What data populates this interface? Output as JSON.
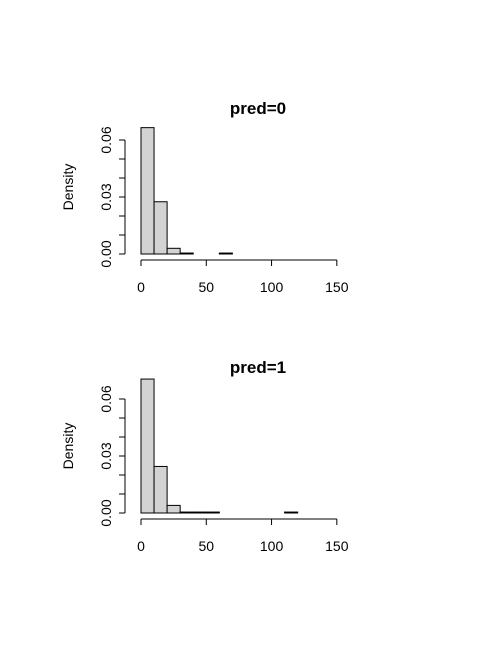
{
  "chart_data": [
    {
      "type": "bar",
      "title": "pred=0",
      "xlabel": "",
      "ylabel": "Density",
      "xlim": [
        0,
        180
      ],
      "ylim": [
        0,
        0.07
      ],
      "xticks": [
        "0",
        "50",
        "100",
        "150"
      ],
      "yticks": [
        "0.00",
        "0.03",
        "0.06"
      ],
      "bin_width": 10,
      "bins": [
        {
          "x0": 0,
          "x1": 10,
          "density": 0.0665
        },
        {
          "x0": 10,
          "x1": 20,
          "density": 0.0275
        },
        {
          "x0": 20,
          "x1": 30,
          "density": 0.003
        },
        {
          "x0": 30,
          "x1": 40,
          "density": 0.0005
        },
        {
          "x0": 40,
          "x1": 50,
          "density": 0.0
        },
        {
          "x0": 50,
          "x1": 60,
          "density": 0.0
        },
        {
          "x0": 60,
          "x1": 70,
          "density": 0.0005
        },
        {
          "x0": 70,
          "x1": 80,
          "density": 0.0
        },
        {
          "x0": 80,
          "x1": 90,
          "density": 0.0
        },
        {
          "x0": 90,
          "x1": 100,
          "density": 0.0
        },
        {
          "x0": 100,
          "x1": 110,
          "density": 0.0
        },
        {
          "x0": 110,
          "x1": 120,
          "density": 0.0
        },
        {
          "x0": 120,
          "x1": 130,
          "density": 0.0
        },
        {
          "x0": 130,
          "x1": 140,
          "density": 0.0
        },
        {
          "x0": 140,
          "x1": 150,
          "density": 0.0
        },
        {
          "x0": 150,
          "x1": 160,
          "density": 0.0
        },
        {
          "x0": 160,
          "x1": 170,
          "density": 0.0
        },
        {
          "x0": 170,
          "x1": 180,
          "density": 0.0
        }
      ]
    },
    {
      "type": "bar",
      "title": "pred=1",
      "xlabel": "",
      "ylabel": "Density",
      "xlim": [
        0,
        180
      ],
      "ylim": [
        0,
        0.07
      ],
      "xticks": [
        "0",
        "50",
        "100",
        "150"
      ],
      "yticks": [
        "0.00",
        "0.03",
        "0.06"
      ],
      "bin_width": 10,
      "bins": [
        {
          "x0": 0,
          "x1": 10,
          "density": 0.0705
        },
        {
          "x0": 10,
          "x1": 20,
          "density": 0.0245
        },
        {
          "x0": 20,
          "x1": 30,
          "density": 0.004
        },
        {
          "x0": 30,
          "x1": 40,
          "density": 0.0005
        },
        {
          "x0": 40,
          "x1": 50,
          "density": 0.0005
        },
        {
          "x0": 50,
          "x1": 60,
          "density": 0.0005
        },
        {
          "x0": 60,
          "x1": 70,
          "density": 0.0
        },
        {
          "x0": 70,
          "x1": 80,
          "density": 0.0
        },
        {
          "x0": 80,
          "x1": 90,
          "density": 0.0
        },
        {
          "x0": 90,
          "x1": 100,
          "density": 0.0
        },
        {
          "x0": 100,
          "x1": 110,
          "density": 0.0
        },
        {
          "x0": 110,
          "x1": 120,
          "density": 0.0005
        },
        {
          "x0": 120,
          "x1": 130,
          "density": 0.0
        },
        {
          "x0": 130,
          "x1": 140,
          "density": 0.0
        },
        {
          "x0": 140,
          "x1": 150,
          "density": 0.0
        },
        {
          "x0": 150,
          "x1": 160,
          "density": 0.0
        },
        {
          "x0": 160,
          "x1": 170,
          "density": 0.0
        },
        {
          "x0": 170,
          "x1": 180,
          "density": 0.0
        }
      ]
    }
  ],
  "colors": {
    "bar_fill": "#d3d3d3",
    "bar_stroke": "#000000",
    "background": "#ffffff"
  }
}
